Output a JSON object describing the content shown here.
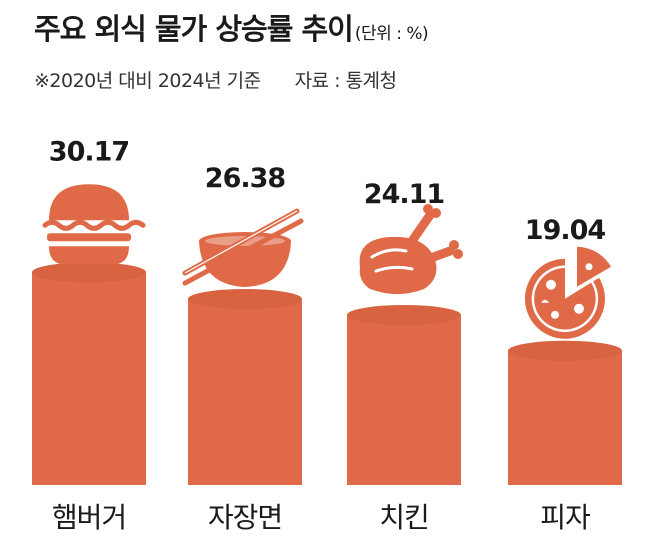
{
  "title": "주요 외식 물가 상승률 추이",
  "unit": "(단위 : %)",
  "note": "※2020년 대비 2024년 기준",
  "source": "자료 : 통계청",
  "colors": {
    "bar_fill": "#e06a47",
    "bar_edge": "#c85535",
    "icon": "#e06a47",
    "icon_light": "#ffffff"
  },
  "chart_data": {
    "type": "bar",
    "categories": [
      "햄버거",
      "자장면",
      "치킨",
      "피자"
    ],
    "values": [
      30.17,
      26.38,
      24.11,
      19.04
    ],
    "value_labels": [
      "30.17",
      "26.38",
      "24.11",
      "19.04"
    ],
    "icons": [
      "hamburger-icon",
      "noodle-bowl-icon",
      "roast-chicken-icon",
      "pizza-icon"
    ],
    "title": "주요 외식 물가 상승률 추이",
    "ylabel": "",
    "grid": false,
    "legend": "none"
  }
}
